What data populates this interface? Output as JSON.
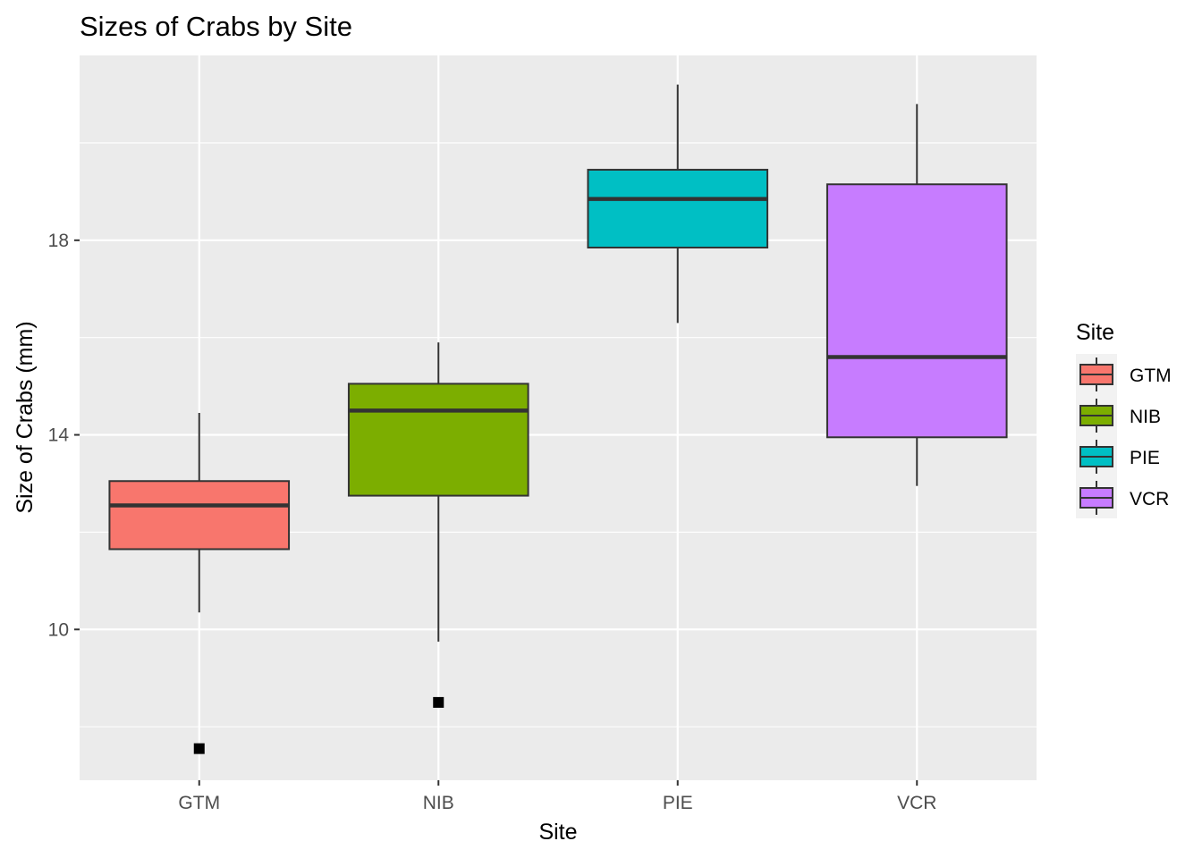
{
  "chart_data": {
    "type": "box",
    "title": "Sizes of Crabs by Site",
    "xlabel": "Site",
    "ylabel": "Size of Crabs (mm)",
    "ylim": [
      6.9,
      21.8
    ],
    "yticks": [
      10,
      14,
      18
    ],
    "y_minor_ticks": [
      8,
      12,
      16,
      20
    ],
    "grid": true,
    "legend": {
      "title": "Site",
      "position": "right"
    },
    "categories": [
      "GTM",
      "NIB",
      "PIE",
      "VCR"
    ],
    "series": [
      {
        "name": "GTM",
        "color": "#F8766D",
        "whisker_low": 10.35,
        "q1": 11.65,
        "median": 12.55,
        "q3": 13.05,
        "whisker_high": 14.45,
        "outliers": [
          7.55
        ]
      },
      {
        "name": "NIB",
        "color": "#7CAE00",
        "whisker_low": 9.75,
        "q1": 12.75,
        "median": 14.5,
        "q3": 15.05,
        "whisker_high": 15.9,
        "outliers": [
          8.5
        ]
      },
      {
        "name": "PIE",
        "color": "#00BFC4",
        "whisker_low": 16.3,
        "q1": 17.85,
        "median": 18.85,
        "q3": 19.45,
        "whisker_high": 21.2,
        "outliers": []
      },
      {
        "name": "VCR",
        "color": "#C77CFF",
        "whisker_low": 12.95,
        "q1": 13.95,
        "median": 15.6,
        "q3": 19.15,
        "whisker_high": 20.8,
        "outliers": []
      }
    ]
  }
}
